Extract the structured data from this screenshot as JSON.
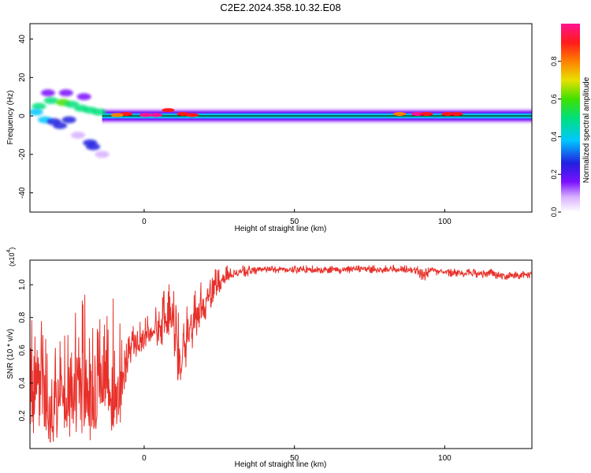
{
  "title": "C2E2.2024.358.10.32.E08",
  "colors": {
    "snr_line": "#e8302a",
    "ridge": "#e8302a",
    "colormap": [
      "#ffffff",
      "#d8b0ff",
      "#7a10ff",
      "#2020e0",
      "#00c8ff",
      "#00e07a",
      "#40e000",
      "#e8e000",
      "#ff8000",
      "#ff1a1a",
      "#ff1490"
    ]
  },
  "spectrogram": {
    "xlabel": "Height of straight line (km)",
    "ylabel": "Frequency (Hz)",
    "xlim": [
      -38,
      129
    ],
    "ylim": [
      -50,
      48
    ],
    "xticks": [
      "0",
      "50",
      "100"
    ],
    "yticks": [
      "40",
      "20",
      "0",
      "-20",
      "-40"
    ],
    "ytick_values": [
      40,
      20,
      0,
      -20,
      -40
    ],
    "xtick_values": [
      0,
      50,
      100
    ],
    "colorbar": {
      "label": "Normalized spectral amplitude",
      "ticks": [
        "0.0",
        "0.2",
        "0.4",
        "0.6",
        "0.8"
      ],
      "tick_values": [
        0.0,
        0.2,
        0.4,
        0.6,
        0.8
      ],
      "range": [
        0,
        1
      ]
    }
  },
  "chart_data": [
    {
      "type": "heatmap",
      "title": "C2E2.2024.358.10.32.E08",
      "xlabel": "Height of straight line (km)",
      "ylabel": "Frequency (Hz)",
      "xlim": [
        -38,
        129
      ],
      "ylim": [
        -50,
        48
      ],
      "value_label": "Normalized spectral amplitude",
      "band_center_hz": 0,
      "band_halfwidth_hz": 5,
      "hotspots": [
        {
          "x": 0.5,
          "y": 0.5,
          "amp": 1.0
        },
        {
          "x": 4,
          "y": 0.5,
          "amp": 0.95
        },
        {
          "x": 8,
          "y": 3,
          "amp": 0.9
        },
        {
          "x": 13,
          "y": 1,
          "amp": 0.85
        },
        {
          "x": 16,
          "y": 0.5,
          "amp": 0.85
        },
        {
          "x": -6,
          "y": 1,
          "amp": 0.85
        },
        {
          "x": -9,
          "y": 0.5,
          "amp": 0.8
        },
        {
          "x": 91,
          "y": 1,
          "amp": 0.95
        },
        {
          "x": 94,
          "y": 1,
          "amp": 0.9
        },
        {
          "x": 101,
          "y": 1,
          "amp": 0.9
        },
        {
          "x": 104,
          "y": 1,
          "amp": 0.85
        },
        {
          "x": 85,
          "y": 1,
          "amp": 0.75
        }
      ],
      "scatter_blobs": [
        {
          "x": -35,
          "y": 5,
          "amp": 0.45
        },
        {
          "x": -31,
          "y": 8,
          "amp": 0.5
        },
        {
          "x": -27,
          "y": 7,
          "amp": 0.55
        },
        {
          "x": -24,
          "y": 6,
          "amp": 0.5
        },
        {
          "x": -21,
          "y": 4,
          "amp": 0.45
        },
        {
          "x": -18,
          "y": 3,
          "amp": 0.5
        },
        {
          "x": -15,
          "y": 2,
          "amp": 0.45
        },
        {
          "x": -33,
          "y": -2,
          "amp": 0.35
        },
        {
          "x": -30,
          "y": -3,
          "amp": 0.3
        },
        {
          "x": -28,
          "y": -5,
          "amp": 0.28
        },
        {
          "x": -25,
          "y": -2,
          "amp": 0.3
        },
        {
          "x": -36,
          "y": 2,
          "amp": 0.4
        },
        {
          "x": -32,
          "y": 12,
          "amp": 0.18
        },
        {
          "x": -26,
          "y": 12,
          "amp": 0.15
        },
        {
          "x": -20,
          "y": 10,
          "amp": 0.15
        },
        {
          "x": -18,
          "y": -14,
          "amp": 0.3
        },
        {
          "x": -17,
          "y": -16,
          "amp": 0.28
        },
        {
          "x": -22,
          "y": -10,
          "amp": 0.12
        },
        {
          "x": -14,
          "y": -20,
          "amp": 0.08
        }
      ]
    },
    {
      "type": "line",
      "xlabel": "Height of straight line (km)",
      "ylabel": "SNR (10 * v/v)",
      "y_multiplier_label": "(x10",
      "y_multiplier_exponent": "4",
      "xlim": [
        -38,
        129
      ],
      "ylim": [
        0.0,
        1.15
      ],
      "xticks": [
        "0",
        "50",
        "100"
      ],
      "xtick_values": [
        0,
        50,
        100
      ],
      "yticks": [
        "1.0",
        "0.8",
        "0.6",
        "0.4",
        "0.2"
      ],
      "ytick_values": [
        1.0,
        0.8,
        0.6,
        0.4,
        0.2
      ],
      "series": [
        {
          "x": [
            -38,
            -35,
            -32,
            -29,
            -26,
            -23,
            -20,
            -17,
            -14,
            -11,
            -8,
            -5,
            -2,
            0,
            3,
            6,
            9,
            11,
            13,
            16,
            19,
            22,
            25,
            28,
            31,
            35,
            40,
            50,
            60,
            70,
            80,
            90,
            93,
            95,
            100,
            105,
            110,
            115,
            120,
            125,
            129
          ],
          "values": [
            0.3,
            0.45,
            0.2,
            0.28,
            0.3,
            0.35,
            0.4,
            0.3,
            0.45,
            0.35,
            0.3,
            0.62,
            0.65,
            0.68,
            0.72,
            0.75,
            0.85,
            0.55,
            0.62,
            0.78,
            0.86,
            0.96,
            1.0,
            1.06,
            1.08,
            1.08,
            1.1,
            1.09,
            1.09,
            1.1,
            1.09,
            1.09,
            1.05,
            1.09,
            1.08,
            1.07,
            1.07,
            1.07,
            1.05,
            1.06,
            1.07
          ],
          "envelope_min": [
            0.1,
            0.05,
            0.03,
            0.05,
            0.02,
            0.03,
            0.05,
            0.05,
            0.15,
            0.1,
            0.2,
            0.5,
            0.55,
            0.6,
            0.65,
            0.6,
            0.7,
            0.27,
            0.45,
            0.6,
            0.7,
            0.85,
            0.95,
            1.03,
            1.05,
            1.05,
            1.07,
            1.07,
            1.07,
            1.07,
            1.07,
            1.07,
            1.0,
            1.06,
            1.05,
            1.05,
            1.04,
            1.03,
            1.02,
            1.03,
            1.04
          ],
          "envelope_max": [
            0.9,
            0.95,
            0.6,
            0.65,
            0.7,
            0.85,
            0.97,
            0.75,
            0.88,
            0.95,
            0.8,
            0.75,
            0.78,
            0.8,
            0.85,
            0.92,
            1.15,
            0.85,
            0.85,
            0.95,
            1.05,
            1.1,
            1.15,
            1.12,
            1.12,
            1.12,
            1.12,
            1.12,
            1.12,
            1.12,
            1.12,
            1.12,
            1.1,
            1.11,
            1.1,
            1.1,
            1.1,
            1.1,
            1.08,
            1.08,
            1.09
          ]
        }
      ]
    }
  ]
}
